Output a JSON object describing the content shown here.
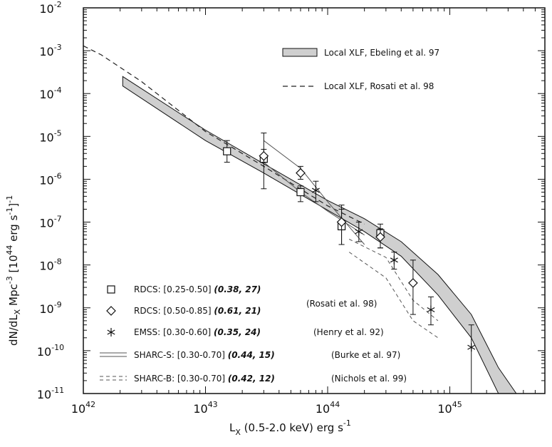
{
  "chart_data": {
    "type": "scatter",
    "xlabel": "L_X (0.5-2.0 keV) erg s^-1",
    "ylabel": "dN/dL_X Mpc^-3 [10^44 erg s^-1]^-1",
    "xscale": "log",
    "yscale": "log",
    "xlim": [
      1e+42,
      6e+45
    ],
    "ylim": [
      1e-11,
      0.01
    ],
    "x_ticks": [
      {
        "base": "10",
        "exp": "42"
      },
      {
        "base": "10",
        "exp": "43"
      },
      {
        "base": "10",
        "exp": "44"
      },
      {
        "base": "10",
        "exp": "45"
      }
    ],
    "y_ticks": [
      {
        "base": "10",
        "exp": "-2"
      },
      {
        "base": "10",
        "exp": "-3"
      },
      {
        "base": "10",
        "exp": "-4"
      },
      {
        "base": "10",
        "exp": "-5"
      },
      {
        "base": "10",
        "exp": "-6"
      },
      {
        "base": "10",
        "exp": "-7"
      },
      {
        "base": "10",
        "exp": "-8"
      },
      {
        "base": "10",
        "exp": "-9"
      },
      {
        "base": "10",
        "exp": "-10"
      },
      {
        "base": "10",
        "exp": "-11"
      }
    ],
    "ebeling_band": {
      "name": "Local XLF, Ebeling et al. 97",
      "x": [
        2.1e+42,
        1e+43,
        3e+43,
        1e+44,
        2e+44,
        4e+44,
        8e+44,
        1.5e+45,
        2.5e+45,
        3.5e+45
      ],
      "upper": [
        0.00025,
        1.4e-05,
        2.3e-06,
        3.2e-07,
        1.2e-07,
        3.5e-08,
        6e-09,
        7e-10,
        4e-11,
        8e-12
      ],
      "lower": [
        0.00015,
        8e-06,
        1.4e-06,
        1.9e-07,
        6e-08,
        1.6e-08,
        2e-09,
        2e-10,
        8e-12,
        8e-12
      ]
    },
    "rosati_curve": {
      "name": "Local XLF, Rosati et al. 98",
      "x": [
        1e+42,
        1.4e+42,
        3e+42,
        1e+43,
        3e+43,
        1e+44,
        2e+44
      ],
      "y": [
        0.0013,
        0.0008,
        0.00019,
        1.3e-05,
        2e-06,
        2.4e-07,
        9e-08
      ]
    },
    "sharc_s": {
      "upper_x": [
        3e+43,
        6e+43,
        1e+44,
        2e+44
      ],
      "upper_y": [
        8e-06,
        1.8e-06,
        3e-07,
        3e-08
      ],
      "lower_x": [
        3e+43,
        6e+43,
        1e+44,
        2e+44
      ],
      "lower_y": [
        2.5e-06,
        5e-07,
        1.8e-07,
        5e-08
      ]
    },
    "sharc_b": {
      "upper_x": [
        1.5e+44,
        3e+44,
        5e+44,
        8e+44
      ],
      "upper_y": [
        4e-08,
        1.5e-08,
        1.5e-09,
        5e-10
      ],
      "lower_x": [
        1.5e+44,
        3e+44,
        5e+44,
        8e+44
      ],
      "lower_y": [
        2e-08,
        5e-09,
        5e-10,
        2e-10
      ]
    },
    "series": [
      {
        "name": "RDCS: [0.25-0.50]",
        "marker": "square",
        "points": [
          {
            "x": 1.5e+43,
            "y": 4.5e-06,
            "lo": 2.5e-06,
            "hi": 8e-06
          },
          {
            "x": 3e+43,
            "y": 3e-06,
            "lo": 6e-07,
            "hi": 1.2e-05
          },
          {
            "x": 6e+43,
            "y": 5e-07,
            "lo": 3e-07,
            "hi": 7e-07
          },
          {
            "x": 1.3e+44,
            "y": 8e-08,
            "lo": 3e-08,
            "hi": 2e-07
          },
          {
            "x": 2.7e+44,
            "y": 5.5e-08,
            "lo": 2.5e-08,
            "hi": 9e-08
          }
        ]
      },
      {
        "name": "RDCS: [0.50-0.85]",
        "marker": "diamond",
        "points": [
          {
            "x": 3e+43,
            "y": 3.5e-06,
            "lo": 2.5e-06,
            "hi": 5e-06
          },
          {
            "x": 6e+43,
            "y": 1.4e-06,
            "lo": 1e-06,
            "hi": 2e-06
          },
          {
            "x": 1.3e+44,
            "y": 1e-07,
            "lo": 3e-08,
            "hi": 2.5e-07
          },
          {
            "x": 2.7e+44,
            "y": 4.5e-08,
            "lo": 2.5e-08,
            "hi": 7e-08
          },
          {
            "x": 5e+44,
            "y": 3.8e-09,
            "lo": 7e-10,
            "hi": 1.3e-08
          }
        ]
      },
      {
        "name": "EMSS: [0.30-0.60]",
        "marker": "asterisk",
        "points": [
          {
            "x": 8e+43,
            "y": 5.5e-07,
            "lo": 3e-07,
            "hi": 9e-07
          },
          {
            "x": 1.8e+44,
            "y": 6e-08,
            "lo": 3.5e-08,
            "hi": 1e-07
          },
          {
            "x": 3.5e+44,
            "y": 1.3e-08,
            "lo": 8e-09,
            "hi": 2e-08
          },
          {
            "x": 7e+44,
            "y": 9e-10,
            "lo": 4e-10,
            "hi": 1.8e-09
          },
          {
            "x": 1.5e+45,
            "y": 1.2e-10,
            "lo": 8e-12,
            "hi": 4e-10
          }
        ]
      }
    ],
    "legend_top": [
      {
        "label": "Local XLF, Ebeling et al. 97",
        "style": "band"
      },
      {
        "label": "Local XLF, Rosati et al. 98",
        "style": "dashed"
      }
    ],
    "legend_bottom": [
      {
        "style": "square",
        "label": "RDCS:",
        "range": "[0.25-0.50]",
        "params": "(0.38, 27)"
      },
      {
        "style": "diamond",
        "label": "RDCS:",
        "range": "[0.50-0.85]",
        "params": "(0.61, 21)"
      },
      {
        "style": "asterisk",
        "label": "EMSS:",
        "range": "[0.30-0.60]",
        "params": "(0.35, 24)",
        "ref": "(Henry et al. 92)"
      },
      {
        "style": "sharc-s",
        "label": "SHARC-S:",
        "range": "[0.30-0.70]",
        "params": "(0.44, 15)",
        "ref": "(Burke et al. 97)"
      },
      {
        "style": "sharc-b",
        "label": "SHARC-B:",
        "range": "[0.30-0.70]",
        "params": "(0.42, 12)",
        "ref": "(Nichols et al. 99)"
      }
    ],
    "rdcs_ref": "(Rosati et al. 98)",
    "colors": {
      "band_fill": "#cfcfcf",
      "ink": "#111111",
      "thin": "#555555"
    }
  }
}
